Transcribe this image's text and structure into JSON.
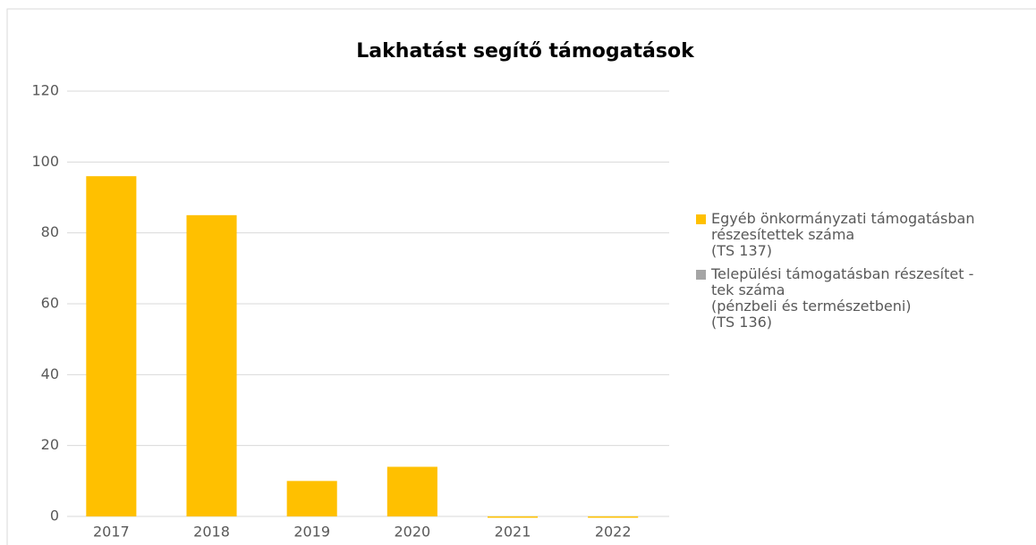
{
  "chart_data": {
    "type": "bar",
    "title": "Lakhatást segítő támogatások",
    "categories": [
      "2017",
      "2018",
      "2019",
      "2020",
      "2021",
      "2022"
    ],
    "series": [
      {
        "name": "Egyéb önkormányzati támogatásban\nrészesítettek száma\n(TS 137)",
        "color": "#ffc000",
        "values": [
          96,
          85,
          10,
          14,
          0,
          0
        ]
      },
      {
        "name": "Települési támogatásban részesítet -\ntek száma\n(pénzbeli és természetbeni)\n(TS 136)",
        "color": "#a5a5a5",
        "values": [
          0,
          0,
          0,
          0,
          0,
          0
        ]
      }
    ],
    "ylim": [
      0,
      120
    ],
    "yticks": [
      0,
      20,
      40,
      60,
      80,
      100,
      120
    ],
    "grid": true,
    "legend": "right"
  }
}
